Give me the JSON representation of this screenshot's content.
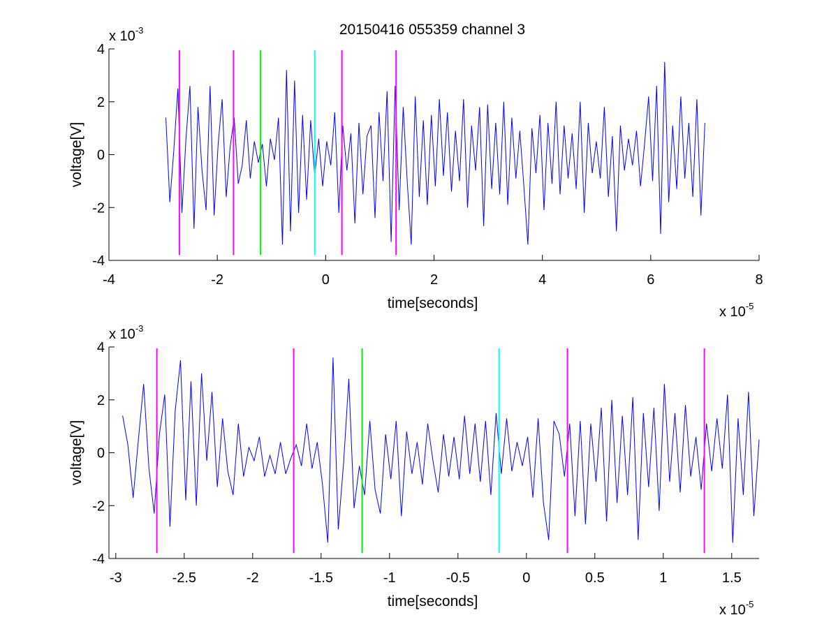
{
  "figure": {
    "title": "20150416 055359 channel 3"
  },
  "colors": {
    "signal": "#0000ff",
    "magenta": "#ff00ff",
    "green": "#00ee00",
    "cyan": "#00ffff",
    "axis": "#000000"
  },
  "chart_data": [
    {
      "type": "line",
      "title": "20150416 055359 channel 3",
      "xlabel": "time[seconds]",
      "ylabel": "voltage[V]",
      "x_multiplier": "x 10",
      "x_exponent": "-5",
      "y_multiplier": "x 10",
      "y_exponent": "-3",
      "xlim": [
        -4,
        8
      ],
      "ylim": [
        -4,
        4
      ],
      "x_ticks": [
        -4,
        -2,
        0,
        2,
        4,
        6,
        8
      ],
      "x_tick_labels": [
        "-4",
        "-2",
        "0",
        "2",
        "4",
        "6",
        "8"
      ],
      "y_ticks": [
        -4,
        -2,
        0,
        2,
        4
      ],
      "y_tick_labels": [
        "-4",
        "-2",
        "0",
        "2",
        "4"
      ],
      "grid": false,
      "series": [
        {
          "style": "signal",
          "x_range": [
            -2.95,
            7.0
          ],
          "y": [
            1.4,
            -1.8,
            0.2,
            2.5,
            -2.2,
            0.6,
            2.6,
            -2.8,
            1.8,
            -0.6,
            -2.1,
            2.6,
            -2.3,
            0.4,
            2.1,
            -1.6,
            0.3,
            1.4,
            -1.1,
            -0.4,
            1.3,
            -0.9,
            0.5,
            -0.3,
            0.4,
            -1.2,
            0.6,
            -0.2,
            1.4,
            -3.4,
            3.2,
            -2.9,
            2.8,
            -2.2,
            1.5,
            -1.7,
            1.3,
            -0.8,
            0.6,
            -1.2,
            0.5,
            -0.4,
            1.6,
            -2.2,
            1.1,
            -0.6,
            0.8,
            -2.6,
            1.2,
            -1.5,
            0.7,
            1.1,
            -2.4,
            1.6,
            -1.0,
            2.4,
            -3.3,
            2.6,
            -2.1,
            1.8,
            -1.0,
            -3.4,
            2.2,
            -1.6,
            1.3,
            -1.9,
            1.5,
            -1.2,
            2.1,
            -0.8,
            1.6,
            -1.4,
            0.9,
            -1.0,
            2.1,
            -2.0,
            1.1,
            -0.6,
            1.8,
            -2.7,
            1.9,
            -1.3,
            1.2,
            -1.5,
            2.0,
            -1.9,
            1.4,
            -0.9,
            0.9,
            -1.2,
            -3.4,
            1.0,
            -0.7,
            1.5,
            -2.1,
            1.2,
            -1.1,
            2.0,
            -1.5,
            1.1,
            -0.9,
            0.8,
            -1.3,
            2.0,
            -2.2,
            1.2,
            -0.7,
            0.5,
            -0.9,
            1.8,
            -1.6,
            0.7,
            -2.9,
            1.1,
            -0.6,
            0.6,
            -0.4,
            0.9,
            -1.2,
            0.4,
            2.2,
            -1.0,
            2.6,
            -3.0,
            3.5,
            -1.8,
            1.1,
            -1.3,
            2.2,
            -0.9,
            1.2,
            -1.6,
            2.1,
            -2.3,
            1.2
          ]
        }
      ],
      "vertical_markers": [
        {
          "x": -2.7,
          "color": "magenta"
        },
        {
          "x": -1.7,
          "color": "magenta"
        },
        {
          "x": -1.2,
          "color": "green"
        },
        {
          "x": -0.2,
          "color": "cyan"
        },
        {
          "x": 0.3,
          "color": "magenta"
        },
        {
          "x": 1.3,
          "color": "magenta"
        }
      ]
    },
    {
      "type": "line",
      "xlabel": "time[seconds]",
      "ylabel": "voltage[V]",
      "x_multiplier": "x 10",
      "x_exponent": "-5",
      "y_multiplier": "x 10",
      "y_exponent": "-3",
      "xlim": [
        -3.05,
        1.7
      ],
      "ylim": [
        -4,
        4
      ],
      "x_ticks": [
        -3,
        -2.5,
        -2,
        -1.5,
        -1,
        -0.5,
        0,
        0.5,
        1,
        1.5
      ],
      "x_tick_labels": [
        "-3",
        "-2.5",
        "-2",
        "-1.5",
        "-1",
        "-0.5",
        "0",
        "0.5",
        "1",
        "1.5"
      ],
      "y_ticks": [
        -4,
        -2,
        0,
        2,
        4
      ],
      "y_tick_labels": [
        "-4",
        "-2",
        "0",
        "2",
        "4"
      ],
      "grid": false,
      "series": [
        {
          "style": "signal",
          "x_range": [
            -2.95,
            1.7
          ],
          "y": [
            1.4,
            0.3,
            -1.7,
            0.5,
            2.6,
            -0.6,
            -2.3,
            0.7,
            2.2,
            -2.8,
            1.6,
            3.5,
            -1.8,
            2.7,
            -2.0,
            3.0,
            -0.3,
            2.3,
            -1.3,
            1.3,
            -0.7,
            -1.6,
            1.1,
            -0.9,
            0.2,
            -0.3,
            0.6,
            -0.9,
            -0.1,
            -0.8,
            0.4,
            -0.8,
            -0.2,
            0.3,
            -0.5,
            1.1,
            -0.6,
            0.4,
            -1.2,
            -3.4,
            3.6,
            -2.9,
            -0.4,
            2.8,
            -2.1,
            -0.5,
            -1.6,
            1.2,
            -1.4,
            -2.3,
            0.7,
            -1.0,
            1.2,
            -2.4,
            0.8,
            -0.8,
            0.4,
            -1.2,
            1.1,
            -0.3,
            -1.5,
            0.7,
            -0.9,
            0.6,
            -1.0,
            1.4,
            -0.8,
            1.1,
            -1.1,
            1.2,
            -1.6,
            1.5,
            -0.8,
            1.3,
            -0.7,
            0.4,
            -0.5,
            0.6,
            -1.7,
            1.3,
            -1.9,
            -3.3,
            1.2,
            0.7,
            -0.9,
            1.1,
            -2.4,
            1.2,
            -2.7,
            1.1,
            -1.1,
            1.7,
            -2.6,
            2.0,
            -1.9,
            1.4,
            -1.6,
            2.1,
            -3.3,
            1.5,
            -1.3,
            1.7,
            -2.2,
            2.6,
            -1.1,
            1.5,
            -1.5,
            1.8,
            -0.9,
            0.6,
            -1.4,
            1.1,
            -0.7,
            1.3,
            -0.6,
            2.2,
            -3.4,
            1.3,
            -1.6,
            2.3,
            -2.4,
            0.5
          ]
        }
      ],
      "vertical_markers": [
        {
          "x": -2.7,
          "color": "magenta"
        },
        {
          "x": -1.7,
          "color": "magenta"
        },
        {
          "x": -1.2,
          "color": "green"
        },
        {
          "x": -0.2,
          "color": "cyan"
        },
        {
          "x": 0.3,
          "color": "magenta"
        },
        {
          "x": 1.3,
          "color": "magenta"
        }
      ]
    }
  ]
}
